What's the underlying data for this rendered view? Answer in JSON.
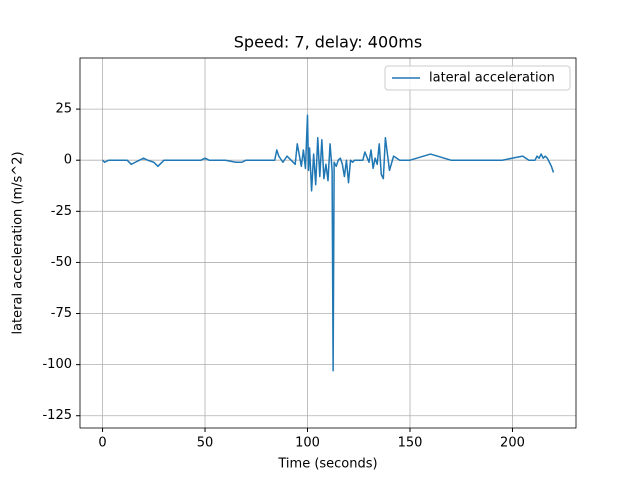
{
  "chart_data": {
    "type": "line",
    "title": "Speed: 7, delay: 400ms",
    "x_label": "Time (seconds)",
    "y_label": "lateral acceleration (m/s^2)",
    "x": [
      0,
      1,
      3,
      5,
      10,
      12,
      14,
      16,
      18,
      20,
      22,
      25,
      27,
      28,
      30,
      35,
      40,
      45,
      48,
      50,
      52,
      55,
      60,
      65,
      68,
      70,
      75,
      80,
      83,
      84,
      85,
      86,
      88,
      90,
      91,
      92,
      94,
      95,
      97,
      98,
      99,
      100,
      100.5,
      101,
      102,
      103,
      104,
      105,
      106,
      107,
      108,
      109,
      110,
      111,
      112,
      112.5,
      113,
      114,
      115,
      116,
      117,
      118,
      119,
      120,
      121,
      122,
      123,
      125,
      127,
      128,
      130,
      131,
      132,
      133,
      134,
      135,
      136,
      137,
      138,
      140,
      142,
      145,
      150,
      160,
      170,
      180,
      185,
      190,
      192,
      195,
      200,
      205,
      208,
      210,
      211,
      212,
      213,
      214,
      215,
      216,
      217,
      218,
      219,
      220
    ],
    "series": [
      {
        "name": "lateral acceleration",
        "color": "#1f77b4",
        "values": [
          0,
          -1,
          0,
          0,
          0,
          0,
          -2,
          -1,
          0,
          1,
          0,
          -1,
          -3,
          -2,
          0,
          0,
          0,
          0,
          0,
          1,
          0,
          0,
          0,
          -1,
          -1,
          0,
          0,
          0,
          0,
          0,
          5,
          2,
          -1,
          2,
          1,
          0,
          -2,
          8,
          -3,
          5,
          -4,
          22,
          -5,
          6,
          -15,
          3,
          -12,
          11,
          -8,
          10,
          -9,
          -2,
          -10,
          8,
          -5,
          -103,
          -1,
          -3,
          0,
          1,
          -2,
          -8,
          0,
          -11,
          0,
          -1,
          0,
          0,
          0,
          4,
          -1,
          5,
          -4,
          1,
          -2,
          8,
          -7,
          -9,
          11,
          -5,
          2,
          0,
          0,
          3,
          0,
          0,
          0,
          0,
          0,
          0,
          1,
          2,
          0,
          0,
          0,
          2,
          1,
          3,
          1,
          2,
          1,
          -1,
          -3,
          -6
        ]
      }
    ],
    "xlim": [
      -11,
      231
    ],
    "xticks": [
      0,
      50,
      100,
      150,
      200
    ],
    "ylim": [
      -131,
      50
    ],
    "yticks": [
      -125,
      -100,
      -75,
      -50,
      -25,
      0,
      25
    ],
    "grid": true,
    "legend": "upper right"
  }
}
